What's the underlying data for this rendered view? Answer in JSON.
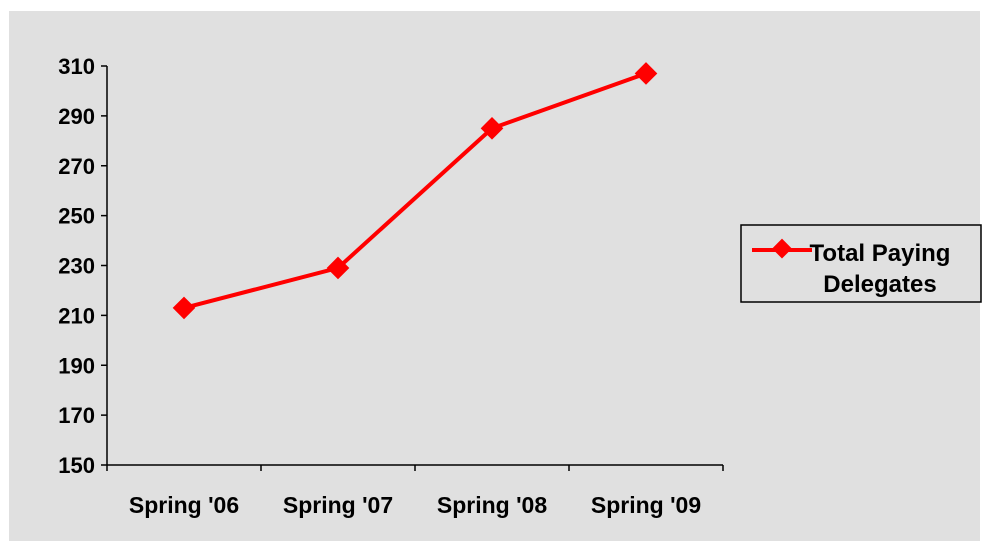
{
  "chart_data": {
    "type": "line",
    "categories": [
      "Spring '06",
      "Spring '07",
      "Spring '08",
      "Spring '09"
    ],
    "series": [
      {
        "name": "Total Paying Delegates",
        "values": [
          213,
          229,
          285,
          307
        ]
      }
    ],
    "ylim": [
      150,
      310
    ],
    "yticks": [
      150,
      170,
      190,
      210,
      230,
      250,
      270,
      290,
      310
    ],
    "grid": false,
    "legend_position": "right",
    "legend_lines": [
      "Total Paying",
      "Delegates"
    ],
    "colors": {
      "background": "#e0e0e0",
      "series": "#ff0000",
      "axis": "#000000"
    }
  }
}
